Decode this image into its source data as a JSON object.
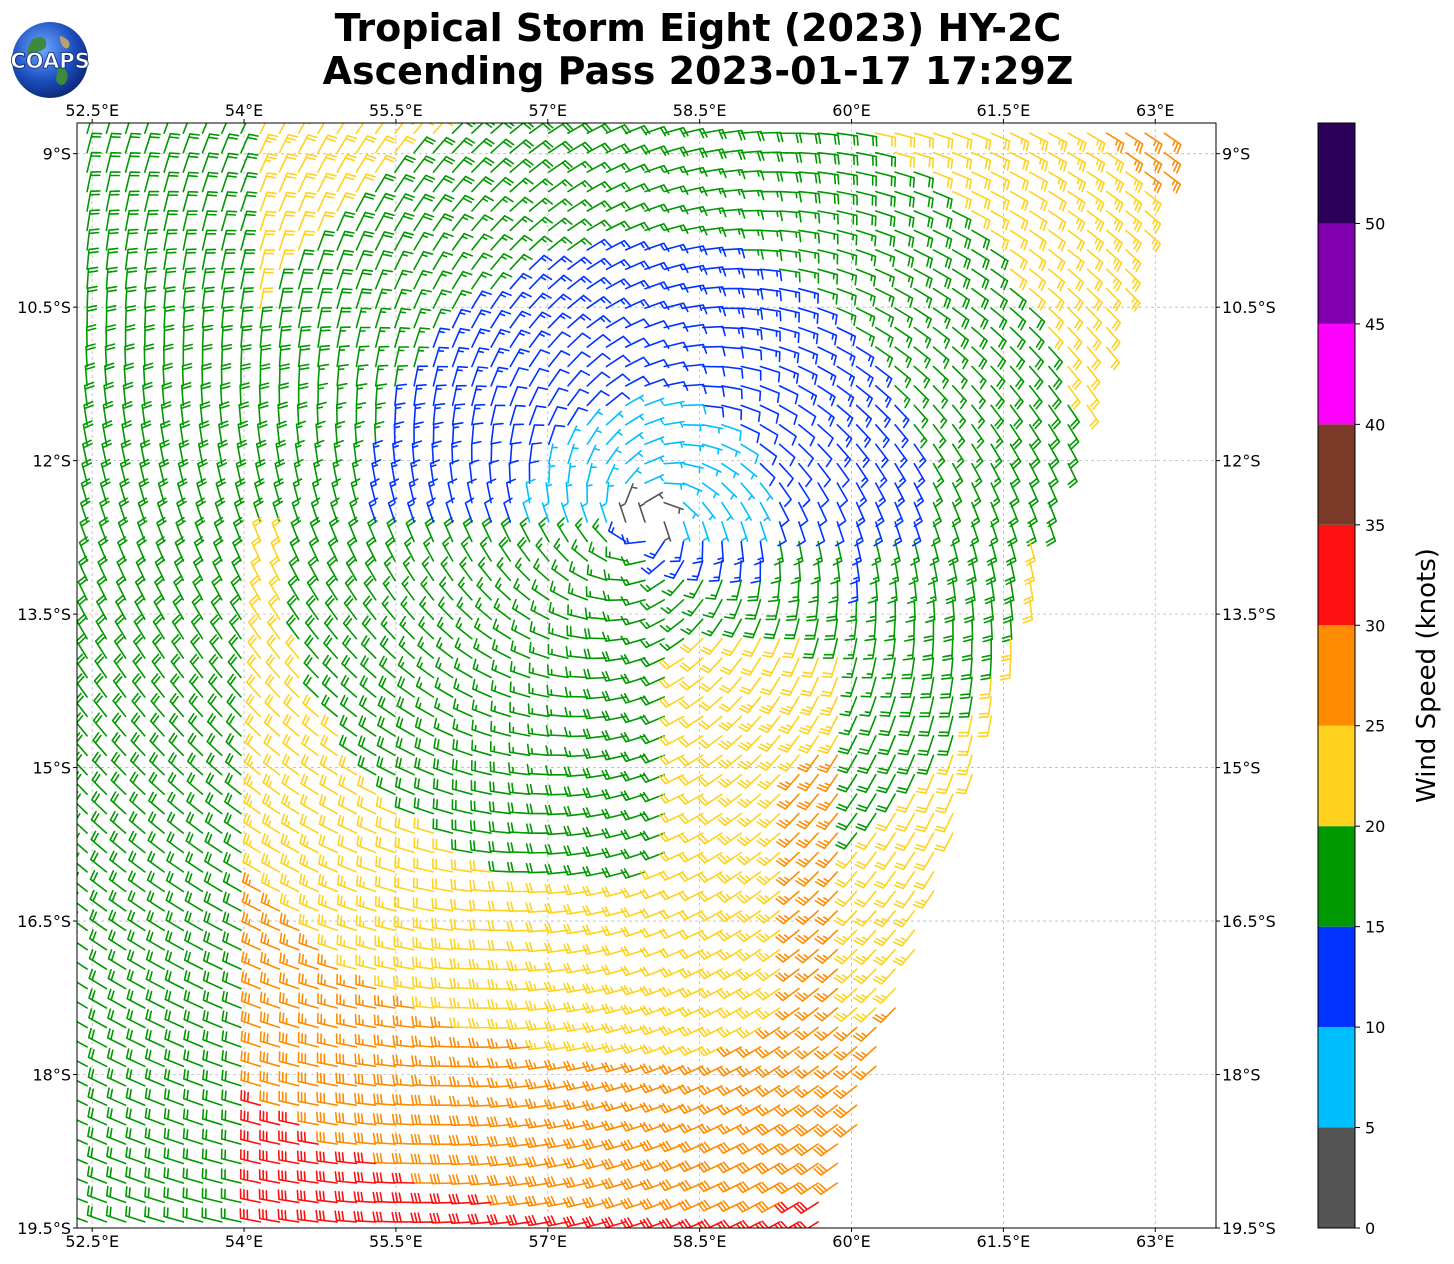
{
  "title_line1": "Tropical Storm Eight (2023) HY-2C",
  "title_line2": "Ascending Pass 2023-01-17 17:29Z",
  "logo_text": "COAPS",
  "chart_data": {
    "type": "wind-barb-map",
    "title": "Tropical Storm Eight (2023) HY-2C Ascending Pass 2023-01-17 17:29Z",
    "lon_range": [
      52.35,
      63.6
    ],
    "lat_range": [
      -19.5,
      -8.7
    ],
    "lon_ticks": [
      52.5,
      54,
      55.5,
      57,
      58.5,
      60,
      61.5,
      63
    ],
    "lon_tick_labels": [
      "52.5°E",
      "54°E",
      "55.5°E",
      "57°E",
      "58.5°E",
      "60°E",
      "61.5°E",
      "63°E"
    ],
    "lat_ticks": [
      -9,
      -10.5,
      -12,
      -13.5,
      -15,
      -16.5,
      -18,
      -19.5
    ],
    "lat_tick_labels": [
      "9°S",
      "10.5°S",
      "12°S",
      "13.5°S",
      "15°S",
      "16.5°S",
      "18°S",
      "19.5°S"
    ],
    "grid": true,
    "storm_center": {
      "lon": 58.0,
      "lat": -12.6
    },
    "colorbar": {
      "label": "Wind Speed (knots)",
      "ticks": [
        0,
        5,
        10,
        15,
        20,
        25,
        30,
        35,
        40,
        45,
        50
      ],
      "bins": [
        {
          "min": 0,
          "max": 5,
          "color": "#555555"
        },
        {
          "min": 5,
          "max": 10,
          "color": "#00bfff"
        },
        {
          "min": 10,
          "max": 15,
          "color": "#0033ff"
        },
        {
          "min": 15,
          "max": 20,
          "color": "#009900"
        },
        {
          "min": 20,
          "max": 25,
          "color": "#ffd21f"
        },
        {
          "min": 25,
          "max": 30,
          "color": "#ff8c00"
        },
        {
          "min": 30,
          "max": 35,
          "color": "#ff1010"
        },
        {
          "min": 35,
          "max": 40,
          "color": "#7b3a28"
        },
        {
          "min": 40,
          "max": 45,
          "color": "#ff00ff"
        },
        {
          "min": 45,
          "max": 50,
          "color": "#8000b0"
        },
        {
          "min": 50,
          "max": 55,
          "color": "#2d005a"
        }
      ]
    }
  }
}
